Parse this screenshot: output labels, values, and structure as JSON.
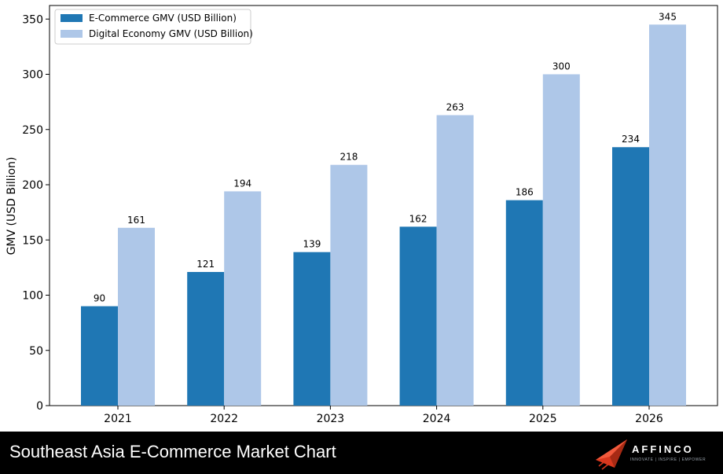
{
  "footer": {
    "title": "Southeast Asia E-Commerce Market Chart",
    "logo_text": "AFFINCO",
    "logo_tagline": "INNOVATE | INSPIRE | EMPOWER",
    "logo_icon": "paper-plane-icon"
  },
  "chart_data": {
    "type": "bar",
    "title": "",
    "xlabel": "",
    "ylabel": "GMV (USD Billion)",
    "categories": [
      "2021",
      "2022",
      "2023",
      "2024",
      "2025",
      "2026"
    ],
    "ylim": [
      0,
      360
    ],
    "yticks": [
      0,
      50,
      100,
      150,
      200,
      250,
      300,
      350
    ],
    "grid": false,
    "legend_position": "top-left",
    "series": [
      {
        "name": "E-Commerce GMV (USD Billion)",
        "color": "#1f77b4",
        "values": [
          90,
          121,
          139,
          162,
          186,
          234
        ]
      },
      {
        "name": "Digital Economy GMV (USD Billion)",
        "color": "#aec7e8",
        "values": [
          161,
          194,
          218,
          263,
          300,
          345
        ]
      }
    ]
  }
}
